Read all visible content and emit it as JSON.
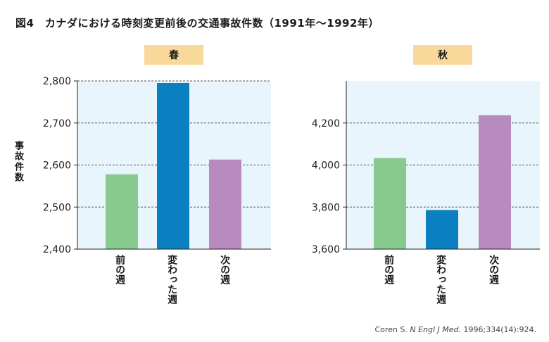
{
  "title": "図4　カナダにおける時刻変更前後の交通事故件数（1991年～1992年）",
  "ylabel": "事故件数",
  "citation": {
    "author": "Coren S. ",
    "journal": "N Engl J Med",
    "rest": ". 1996;334(14):924."
  },
  "colors": {
    "panel_bg": "#e9f5fd",
    "label_bg": "#f9d99a",
    "bars": [
      "#88c98f",
      "#0a80c0",
      "#b88bbf"
    ]
  },
  "chart_data": [
    {
      "type": "bar",
      "title": "春",
      "categories": [
        "前の週",
        "変わった週",
        "次の週"
      ],
      "values": [
        2578,
        2795,
        2613
      ],
      "ylim": [
        2400,
        2800
      ],
      "yticks": [
        2400,
        2500,
        2600,
        2700,
        2800
      ],
      "ytick_labels": [
        "2,400",
        "2,500",
        "2,600",
        "2,700",
        "2,800"
      ],
      "grid": true
    },
    {
      "type": "bar",
      "title": "秋",
      "categories": [
        "前の週",
        "変わった週",
        "次の週"
      ],
      "values": [
        4033,
        3786,
        4237
      ],
      "ylim": [
        3600,
        4400
      ],
      "yticks": [
        3600,
        3800,
        4000,
        4200
      ],
      "ytick_labels": [
        "3,600",
        "3,800",
        "4,000",
        "4,200"
      ],
      "grid": true
    }
  ]
}
